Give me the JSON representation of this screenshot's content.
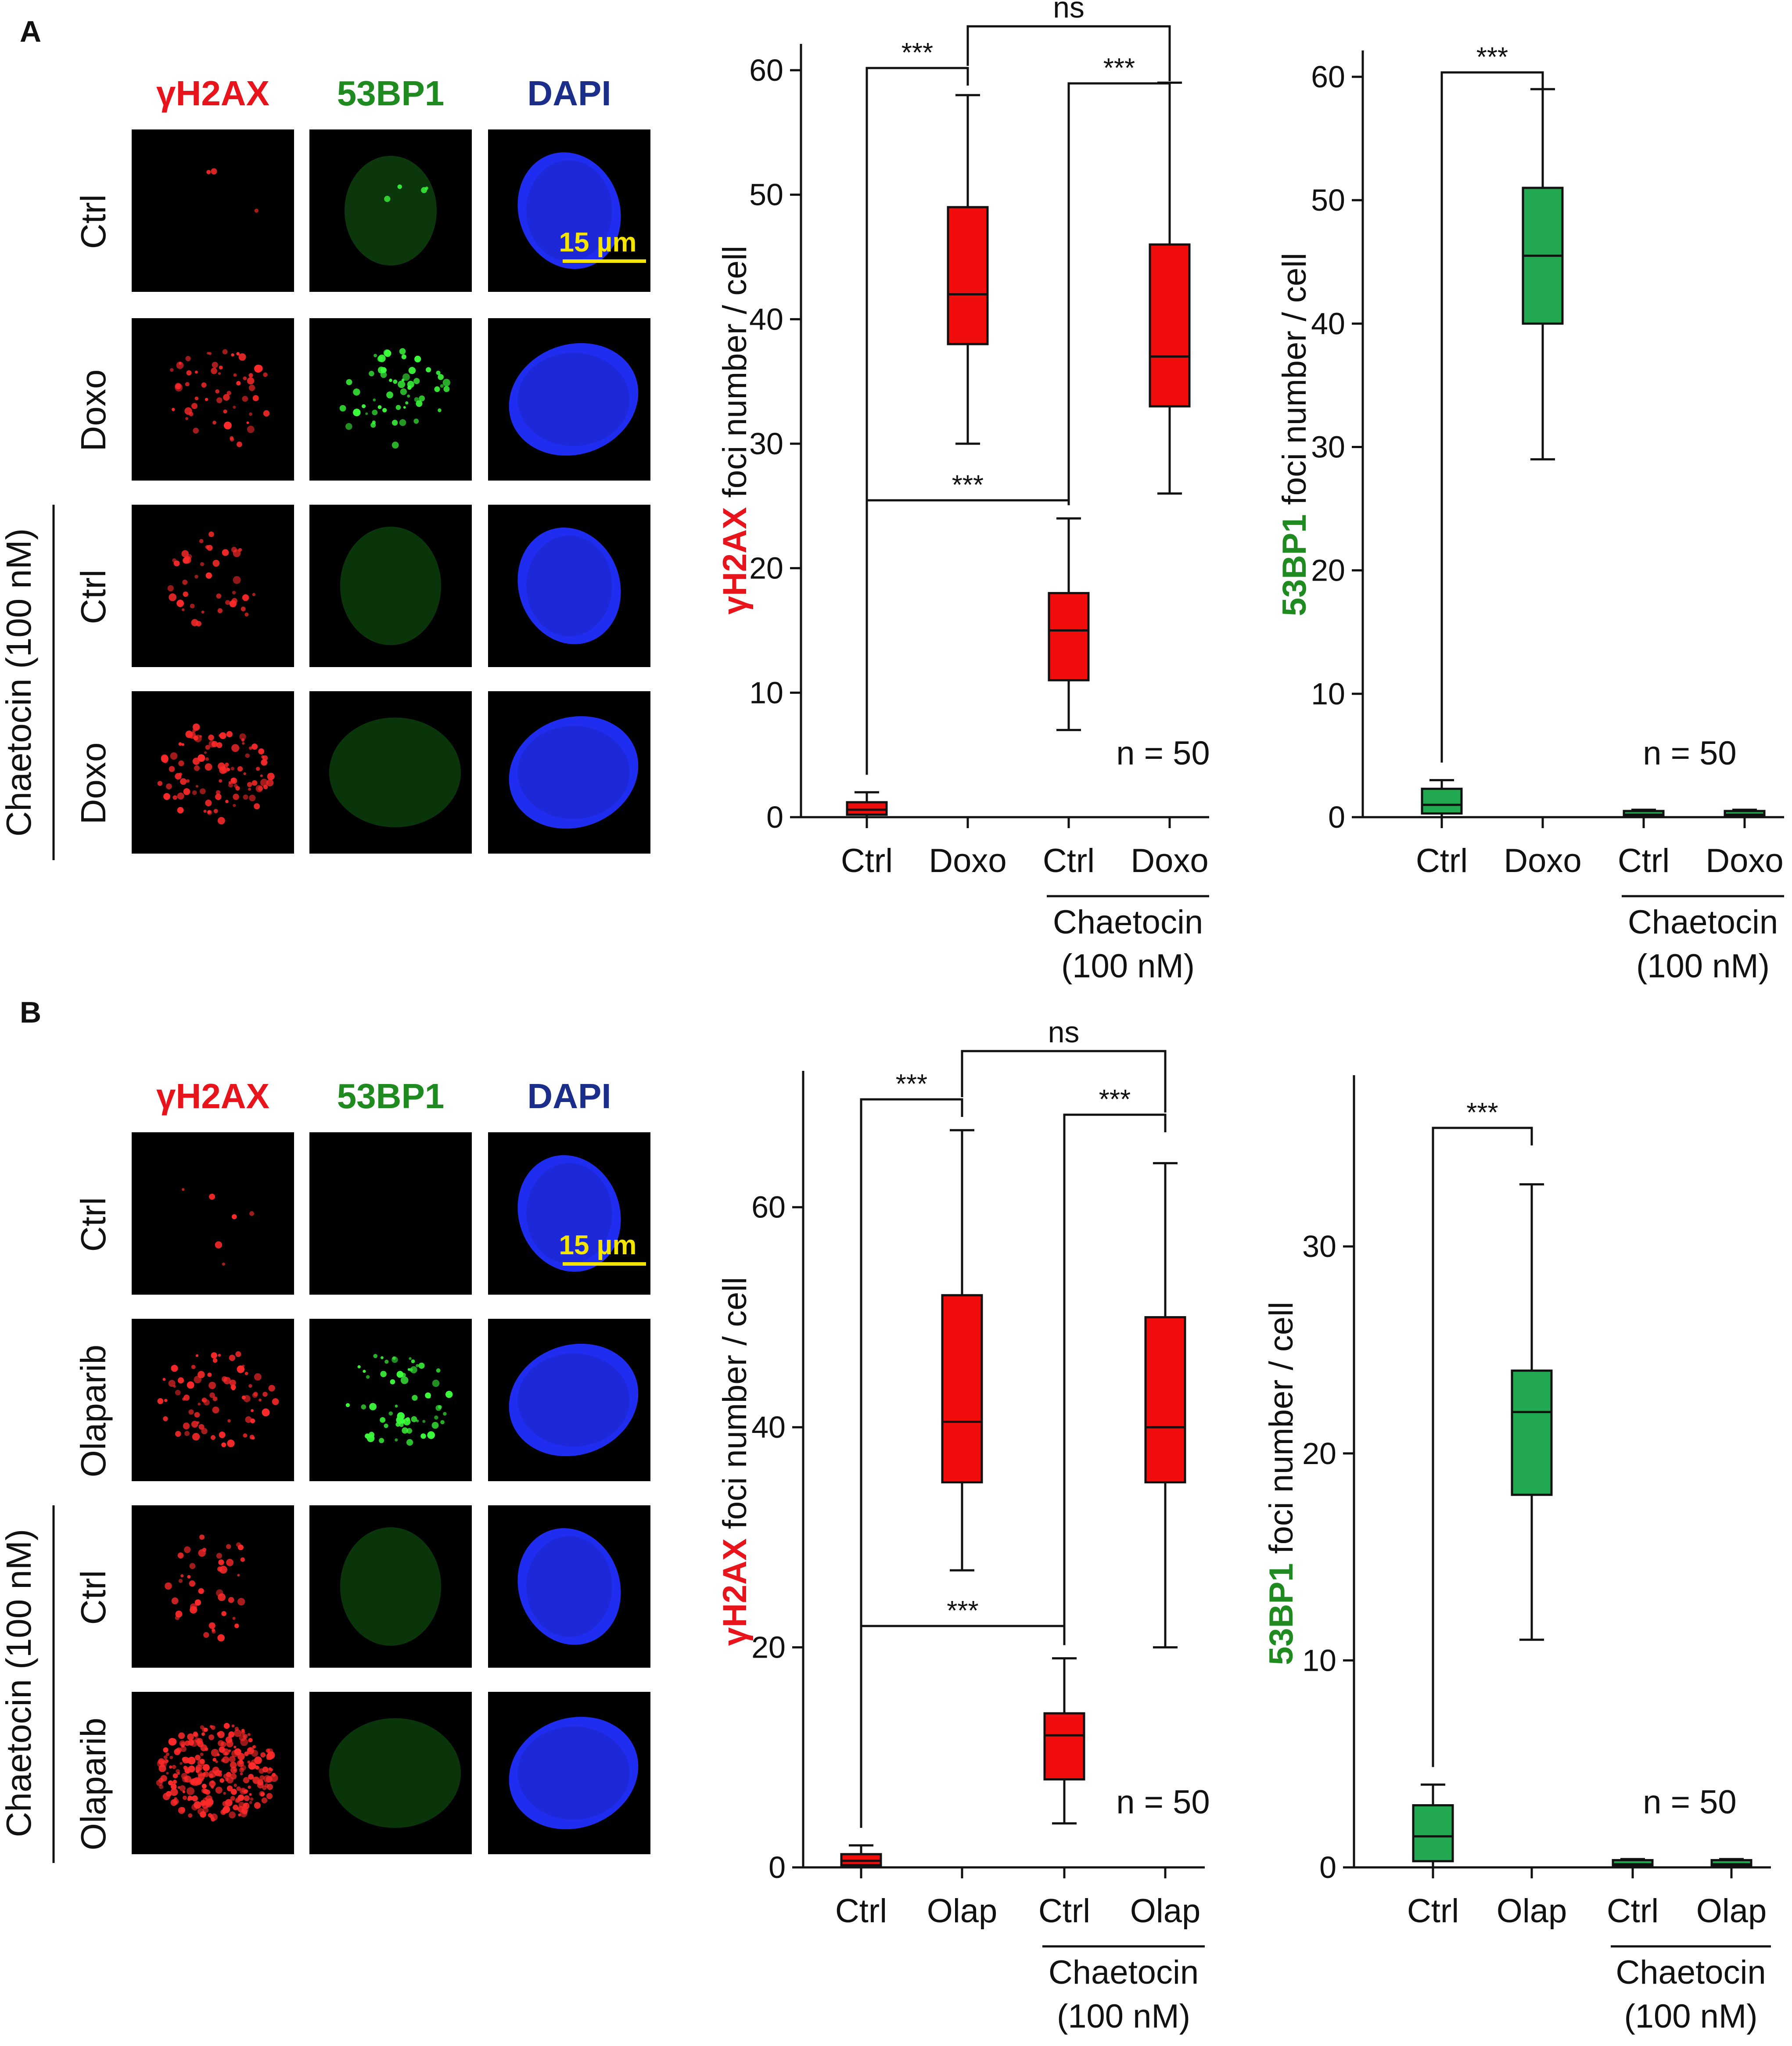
{
  "panels": [
    {
      "letter": "A",
      "channels": [
        {
          "label": "γH2AX",
          "color": "#e8141b"
        },
        {
          "label": "53BP1",
          "color": "#1f8a1f"
        },
        {
          "label": "DAPI",
          "color": "#1b2f8a"
        }
      ],
      "row_labels": [
        "Ctrl",
        "Doxo",
        "Ctrl",
        "Doxo"
      ],
      "treatment_group_label": "Chaetocin (100 nM)",
      "scale_bar_label": "15 µm"
    },
    {
      "letter": "B",
      "channels": [
        {
          "label": "γH2AX",
          "color": "#e8141b"
        },
        {
          "label": "53BP1",
          "color": "#1f8a1f"
        },
        {
          "label": "DAPI",
          "color": "#1b2f8a"
        }
      ],
      "row_labels": [
        "Ctrl",
        "Olaparib",
        "Ctrl",
        "Olaparib"
      ],
      "treatment_group_label": "Chaetocin (100 nM)",
      "scale_bar_label": "15 µm"
    }
  ],
  "chart_data": [
    {
      "type": "box",
      "panel": "A",
      "ylabel_marker": "γH2AX",
      "ylabel_rest": " foci number / cell",
      "ylim": [
        0,
        60
      ],
      "yticks": [
        0,
        10,
        20,
        30,
        40,
        50,
        60
      ],
      "categories": [
        "Ctrl",
        "Doxo",
        "Ctrl",
        "Doxo"
      ],
      "group_label": [
        "Chaetocin",
        "(100 nM)"
      ],
      "n_label": "n = 50",
      "box_color": "#f20d0d",
      "series": [
        {
          "min": 0,
          "q1": 0.2,
          "median": 0.6,
          "q3": 1.2,
          "max": 2
        },
        {
          "min": 30,
          "q1": 38,
          "median": 42,
          "q3": 49,
          "max": 58
        },
        {
          "min": 7,
          "q1": 11,
          "median": 15,
          "q3": 18,
          "max": 24
        },
        {
          "min": 26,
          "q1": 33,
          "median": 37,
          "q3": 46,
          "max": 59
        }
      ],
      "significance": [
        {
          "from": 0,
          "to": 1,
          "label": "***"
        },
        {
          "from": 2,
          "to": 3,
          "label": "***"
        },
        {
          "from": 1,
          "to": 3,
          "label": "ns"
        },
        {
          "from": 0,
          "to": 2,
          "label": "***"
        }
      ]
    },
    {
      "type": "box",
      "panel": "A",
      "ylabel_marker": "53BP1",
      "ylabel_rest": " foci number / cell",
      "ylim": [
        0,
        60
      ],
      "yticks": [
        0,
        10,
        20,
        30,
        40,
        50,
        60
      ],
      "categories": [
        "Ctrl",
        "Doxo",
        "Ctrl",
        "Doxo"
      ],
      "group_label": [
        "Chaetocin",
        "(100 nM)"
      ],
      "n_label": "n = 50",
      "box_color": "#23a852",
      "series": [
        {
          "min": 0,
          "q1": 0.3,
          "median": 1,
          "q3": 2.3,
          "max": 3
        },
        {
          "min": 29,
          "q1": 40,
          "median": 45.5,
          "q3": 51,
          "max": 59
        },
        {
          "min": 0,
          "q1": 0.1,
          "median": 0.2,
          "q3": 0.5,
          "max": 0.6
        },
        {
          "min": 0,
          "q1": 0.1,
          "median": 0.2,
          "q3": 0.5,
          "max": 0.6
        }
      ],
      "significance": [
        {
          "from": 0,
          "to": 1,
          "label": "***"
        }
      ]
    },
    {
      "type": "box",
      "panel": "B",
      "ylabel_marker": "γH2AX",
      "ylabel_rest": " foci number / cell",
      "ylim": [
        0,
        70
      ],
      "yticks": [
        0,
        20,
        40,
        60
      ],
      "categories": [
        "Ctrl",
        "Olap",
        "Ctrl",
        "Olap"
      ],
      "group_label": [
        "Chaetocin",
        "(100 nM)"
      ],
      "n_label": "n = 50",
      "box_color": "#f20d0d",
      "series": [
        {
          "min": 0,
          "q1": 0.2,
          "median": 0.6,
          "q3": 1.2,
          "max": 2
        },
        {
          "min": 27,
          "q1": 35,
          "median": 40.5,
          "q3": 52,
          "max": 67
        },
        {
          "min": 4,
          "q1": 8,
          "median": 12,
          "q3": 14,
          "max": 19
        },
        {
          "min": 20,
          "q1": 35,
          "median": 40,
          "q3": 50,
          "max": 64
        }
      ],
      "significance": [
        {
          "from": 0,
          "to": 1,
          "label": "***"
        },
        {
          "from": 2,
          "to": 3,
          "label": "***"
        },
        {
          "from": 1,
          "to": 3,
          "label": "ns"
        },
        {
          "from": 0,
          "to": 2,
          "label": "***"
        }
      ]
    },
    {
      "type": "box",
      "panel": "B",
      "ylabel_marker": "53BP1",
      "ylabel_rest": " foci number / cell",
      "ylim": [
        0,
        37
      ],
      "yticks": [
        0,
        10,
        20,
        30
      ],
      "categories": [
        "Ctrl",
        "Olap",
        "Ctrl",
        "Olap"
      ],
      "group_label": [
        "Chaetocin",
        "(100 nM)"
      ],
      "n_label": "n = 50",
      "box_color": "#23a852",
      "series": [
        {
          "min": 0,
          "q1": 0.3,
          "median": 1.5,
          "q3": 3,
          "max": 4
        },
        {
          "min": 11,
          "q1": 18,
          "median": 22,
          "q3": 24,
          "max": 33
        },
        {
          "min": 0,
          "q1": 0.1,
          "median": 0.15,
          "q3": 0.35,
          "max": 0.4
        },
        {
          "min": 0,
          "q1": 0.1,
          "median": 0.15,
          "q3": 0.35,
          "max": 0.4
        }
      ],
      "significance": [
        {
          "from": 0,
          "to": 1,
          "label": "***"
        }
      ]
    }
  ]
}
